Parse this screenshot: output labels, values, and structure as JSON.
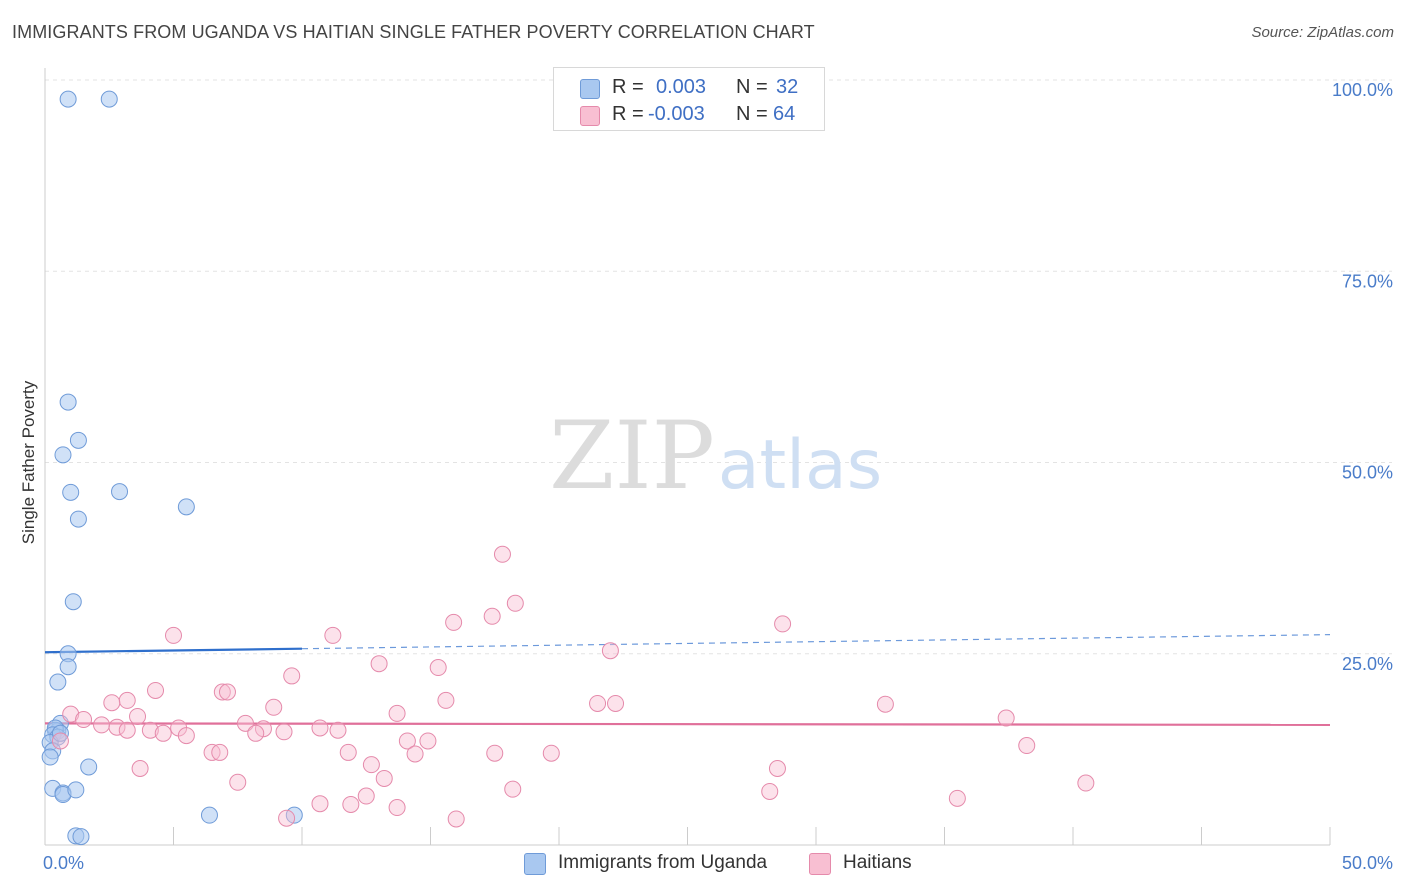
{
  "title": "IMMIGRANTS FROM UGANDA VS HAITIAN SINGLE FATHER POVERTY CORRELATION CHART",
  "source": "Source: ZipAtlas.com",
  "watermark": {
    "zip": "ZIP",
    "atlas": "atlas"
  },
  "legend": {
    "r_label": "R =",
    "n_label": "N =",
    "rows": [
      {
        "name": "Immigrants from Uganda",
        "r": "0.003",
        "n": "32",
        "color": "#a9c8f0",
        "border": "#6f9bd8"
      },
      {
        "name": "Haitians",
        "r": "-0.003",
        "n": "64",
        "color": "#f8bfd2",
        "border": "#e58aab"
      }
    ]
  },
  "chart_data": {
    "type": "scatter",
    "title": "IMMIGRANTS FROM UGANDA VS HAITIAN SINGLE FATHER POVERTY CORRELATION CHART",
    "xlabel": "",
    "ylabel": "Single Father Poverty",
    "xlim": [
      0,
      50
    ],
    "ylim": [
      0,
      100
    ],
    "x_tick_labels": [
      "0.0%",
      "50.0%"
    ],
    "y_ticks": [
      25,
      50,
      75,
      100
    ],
    "y_tick_labels": [
      "25.0%",
      "50.0%",
      "75.0%",
      "100.0%"
    ],
    "x_minor_ticks": [
      0,
      5,
      10,
      15,
      20,
      25,
      30,
      35,
      40,
      45,
      50
    ],
    "grid": true,
    "series": [
      {
        "name": "Immigrants from Uganda",
        "color": "#6f9bd8",
        "fill": "rgba(169,200,240,0.55)",
        "trend": {
          "x0": 0,
          "y0": 25.2,
          "x1": 50,
          "y1": 27.5,
          "solid_until": 10
        },
        "trend_color": "#2f6fcc",
        "points": [
          [
            0.9,
            97.5
          ],
          [
            2.5,
            97.5
          ],
          [
            0.9,
            57.9
          ],
          [
            1.3,
            52.9
          ],
          [
            0.7,
            51.0
          ],
          [
            1.0,
            46.1
          ],
          [
            2.9,
            46.2
          ],
          [
            1.3,
            42.6
          ],
          [
            5.5,
            44.2
          ],
          [
            1.1,
            31.8
          ],
          [
            0.9,
            25.0
          ],
          [
            0.9,
            23.3
          ],
          [
            0.5,
            21.3
          ],
          [
            0.6,
            15.9
          ],
          [
            0.5,
            14.9
          ],
          [
            0.4,
            15.0
          ],
          [
            0.4,
            15.3
          ],
          [
            0.3,
            14.4
          ],
          [
            0.5,
            14.1
          ],
          [
            0.2,
            13.4
          ],
          [
            0.3,
            12.3
          ],
          [
            0.2,
            11.5
          ],
          [
            1.7,
            10.2
          ],
          [
            0.3,
            7.4
          ],
          [
            0.7,
            6.8
          ],
          [
            0.7,
            6.6
          ],
          [
            1.2,
            7.2
          ],
          [
            6.4,
            3.9
          ],
          [
            9.7,
            3.9
          ],
          [
            1.2,
            1.2
          ],
          [
            1.4,
            1.1
          ],
          [
            0.6,
            14.6
          ]
        ]
      },
      {
        "name": "Haitians",
        "color": "#e58aab",
        "fill": "rgba(248,191,210,0.45)",
        "trend": {
          "x0": 0,
          "y0": 15.9,
          "x1": 50,
          "y1": 15.7,
          "solid_until": 50
        },
        "trend_color": "#e0709a",
        "points": [
          [
            17.8,
            38.0
          ],
          [
            18.3,
            31.6
          ],
          [
            15.9,
            29.1
          ],
          [
            17.4,
            29.9
          ],
          [
            28.7,
            28.9
          ],
          [
            5.0,
            27.4
          ],
          [
            11.2,
            27.4
          ],
          [
            22.0,
            25.4
          ],
          [
            13.0,
            23.7
          ],
          [
            15.3,
            23.2
          ],
          [
            9.6,
            22.1
          ],
          [
            4.3,
            20.2
          ],
          [
            6.9,
            20.0
          ],
          [
            7.1,
            20.0
          ],
          [
            3.2,
            18.9
          ],
          [
            2.6,
            18.6
          ],
          [
            15.6,
            18.9
          ],
          [
            21.5,
            18.5
          ],
          [
            22.2,
            18.5
          ],
          [
            32.7,
            18.4
          ],
          [
            8.9,
            18.0
          ],
          [
            1.0,
            17.1
          ],
          [
            3.6,
            16.8
          ],
          [
            13.7,
            17.2
          ],
          [
            37.4,
            16.6
          ],
          [
            1.5,
            16.4
          ],
          [
            2.2,
            15.7
          ],
          [
            5.2,
            15.3
          ],
          [
            7.8,
            15.9
          ],
          [
            10.7,
            15.3
          ],
          [
            2.8,
            15.4
          ],
          [
            4.1,
            15.0
          ],
          [
            3.2,
            15.0
          ],
          [
            4.6,
            14.6
          ],
          [
            8.5,
            15.2
          ],
          [
            9.3,
            14.8
          ],
          [
            11.4,
            15.0
          ],
          [
            8.2,
            14.6
          ],
          [
            5.5,
            14.3
          ],
          [
            0.6,
            13.6
          ],
          [
            14.1,
            13.6
          ],
          [
            14.9,
            13.6
          ],
          [
            6.5,
            12.1
          ],
          [
            6.8,
            12.1
          ],
          [
            11.8,
            12.1
          ],
          [
            14.4,
            11.9
          ],
          [
            17.5,
            12.0
          ],
          [
            19.7,
            12.0
          ],
          [
            38.2,
            13.0
          ],
          [
            12.7,
            10.5
          ],
          [
            3.7,
            10.0
          ],
          [
            28.5,
            10.0
          ],
          [
            13.2,
            8.7
          ],
          [
            7.5,
            8.2
          ],
          [
            18.2,
            7.3
          ],
          [
            28.2,
            7.0
          ],
          [
            40.5,
            8.1
          ],
          [
            12.5,
            6.4
          ],
          [
            11.9,
            5.3
          ],
          [
            10.7,
            5.4
          ],
          [
            35.5,
            6.1
          ],
          [
            13.7,
            4.9
          ],
          [
            16.0,
            3.4
          ],
          [
            9.4,
            3.5
          ]
        ]
      }
    ]
  }
}
